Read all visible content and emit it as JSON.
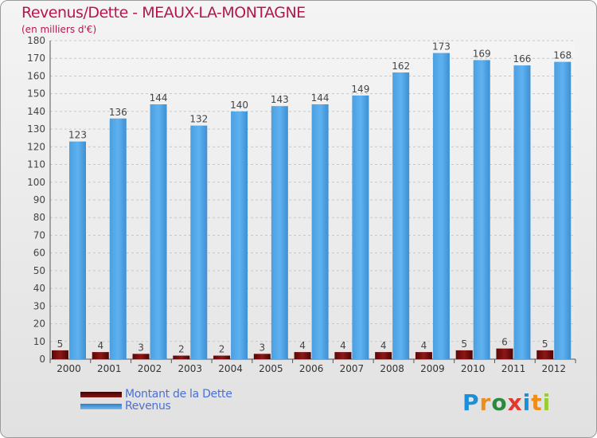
{
  "header": {
    "title": "Revenus/Dette - MEAUX-LA-MONTAGNE",
    "subtitle": "(en milliers d'€)"
  },
  "legend": {
    "items": [
      {
        "label": "Montant de la Dette",
        "color": "#6b0a0a"
      },
      {
        "label": "Revenus",
        "color": "#4fa3e3"
      }
    ]
  },
  "logo": {
    "text": "Proxiti",
    "colors": [
      "#1b8fd8",
      "#f08c1a",
      "#2b8a3e",
      "#e03a2e",
      "#1b8fd8",
      "#f08c1a",
      "#9acd32"
    ]
  },
  "chart_data": {
    "type": "bar",
    "title": "Revenus/Dette - MEAUX-LA-MONTAGNE",
    "subtitle": "(en milliers d'€)",
    "xlabel": "",
    "ylabel": "",
    "ylim": [
      0,
      180
    ],
    "ytick_step": 10,
    "grid": true,
    "categories": [
      "2000",
      "2001",
      "2002",
      "2003",
      "2004",
      "2005",
      "2006",
      "2007",
      "2008",
      "2009",
      "2010",
      "2011",
      "2012"
    ],
    "series": [
      {
        "name": "Montant de la Dette",
        "color": "#6b0a0a",
        "values": [
          5,
          4,
          3,
          2,
          2,
          3,
          4,
          4,
          4,
          4,
          5,
          6,
          5
        ]
      },
      {
        "name": "Revenus",
        "color": "#4fa3e3",
        "values": [
          123,
          136,
          144,
          132,
          140,
          143,
          144,
          149,
          162,
          173,
          169,
          166,
          168
        ]
      }
    ]
  }
}
